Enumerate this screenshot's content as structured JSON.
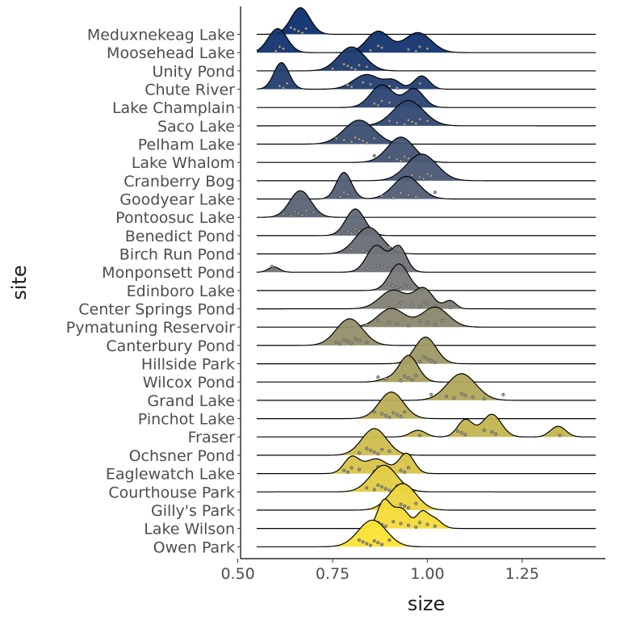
{
  "chart_data": {
    "type": "ridgeline",
    "xlabel": "size",
    "ylabel": "site",
    "xlim": [
      0.52,
      1.44
    ],
    "x_ticks": [
      0.5,
      0.75,
      1.0,
      1.25
    ],
    "x_tick_labels": [
      "0.50",
      "0.75",
      "1.00",
      "1.25"
    ],
    "fill_gradient": [
      "#0b2e6e",
      "#fde333"
    ],
    "grid": false,
    "legend": "none",
    "sites": [
      {
        "name": "Meduxnekeag Lake",
        "peaks": [
          [
            0.665,
            0.025,
            1.0
          ]
        ],
        "points": [
          0.64,
          0.65,
          0.66,
          0.67,
          0.68
        ]
      },
      {
        "name": "Moosehead Lake",
        "peaks": [
          [
            0.605,
            0.025,
            0.9
          ],
          [
            0.87,
            0.03,
            0.8
          ],
          [
            0.975,
            0.035,
            0.75
          ]
        ],
        "points": [
          0.6,
          0.61,
          0.62,
          0.85,
          0.87,
          0.88,
          0.95,
          0.97,
          0.98,
          1.0
        ]
      },
      {
        "name": "Unity Pond",
        "peaks": [
          [
            0.8,
            0.035,
            0.9
          ]
        ],
        "points": [
          0.75,
          0.78,
          0.79,
          0.8,
          0.81,
          0.82,
          0.84
        ]
      },
      {
        "name": "Chute River",
        "peaks": [
          [
            0.615,
            0.02,
            1.0
          ],
          [
            0.84,
            0.035,
            0.55
          ],
          [
            0.91,
            0.02,
            0.3
          ],
          [
            0.985,
            0.02,
            0.5
          ]
        ],
        "points": [
          0.61,
          0.62,
          0.63,
          0.79,
          0.8,
          0.83,
          0.85,
          0.9,
          0.92,
          0.98
        ]
      },
      {
        "name": "Lake Champlain",
        "peaks": [
          [
            0.88,
            0.03,
            0.85
          ],
          [
            0.965,
            0.025,
            0.7
          ]
        ],
        "points": [
          0.86,
          0.87,
          0.88,
          0.9,
          0.93,
          0.95,
          0.96,
          0.97
        ]
      },
      {
        "name": "Saco Lake",
        "peaks": [
          [
            0.95,
            0.04,
            0.95
          ]
        ],
        "points": [
          0.9,
          0.92,
          0.94,
          0.95,
          0.96,
          0.97,
          0.98,
          1.0
        ]
      },
      {
        "name": "Pelham Lake",
        "peaks": [
          [
            0.82,
            0.04,
            0.9
          ]
        ],
        "points": [
          0.76,
          0.78,
          0.8,
          0.81,
          0.82,
          0.83,
          0.84,
          0.86
        ]
      },
      {
        "name": "Lake Whalom",
        "peaks": [
          [
            0.93,
            0.035,
            0.95
          ]
        ],
        "points": [
          0.86,
          0.9,
          0.92,
          0.93,
          0.94,
          0.95
        ]
      },
      {
        "name": "Cranberry Bog",
        "peaks": [
          [
            0.985,
            0.04,
            1.0
          ]
        ],
        "points": [
          0.93,
          0.96,
          0.98,
          0.99,
          1.0,
          1.01
        ]
      },
      {
        "name": "Goodyear Lake",
        "peaks": [
          [
            0.78,
            0.02,
            1.0
          ],
          [
            0.945,
            0.035,
            0.85
          ]
        ],
        "points": [
          0.77,
          0.78,
          0.79,
          0.88,
          0.91,
          0.93,
          0.95,
          0.97,
          1.02
        ]
      },
      {
        "name": "Pontoosuc Lake",
        "peaks": [
          [
            0.665,
            0.028,
            1.0
          ]
        ],
        "points": [
          0.62,
          0.64,
          0.65,
          0.66,
          0.67,
          0.68,
          0.7
        ]
      },
      {
        "name": "Benedict Pond",
        "peaks": [
          [
            0.81,
            0.025,
            1.0
          ]
        ],
        "points": [
          0.79,
          0.8,
          0.81,
          0.82,
          0.83
        ]
      },
      {
        "name": "Birch Run Pond",
        "peaks": [
          [
            0.845,
            0.035,
            1.0
          ]
        ],
        "points": [
          0.8,
          0.83,
          0.84,
          0.85,
          0.86,
          0.88,
          0.9
        ]
      },
      {
        "name": "Monponsett Pond",
        "peaks": [
          [
            0.595,
            0.015,
            0.2
          ],
          [
            0.865,
            0.025,
            1.0
          ],
          [
            0.925,
            0.02,
            0.95
          ]
        ],
        "points": [
          0.59,
          0.84,
          0.86,
          0.87,
          0.88,
          0.9,
          0.92,
          0.93,
          0.94
        ]
      },
      {
        "name": "Edinboro Lake",
        "peaks": [
          [
            0.925,
            0.025,
            1.0
          ]
        ],
        "points": [
          0.9,
          0.91,
          0.92,
          0.93,
          0.94,
          0.95
        ]
      },
      {
        "name": "Center Springs Pond",
        "peaks": [
          [
            0.91,
            0.035,
            0.7
          ],
          [
            0.99,
            0.025,
            0.75
          ],
          [
            1.06,
            0.015,
            0.3
          ]
        ],
        "points": [
          0.9,
          0.93,
          0.96,
          0.98,
          0.99,
          1.0,
          1.02,
          1.06
        ]
      },
      {
        "name": "Pymatuning Reservoir",
        "peaks": [
          [
            0.905,
            0.035,
            0.7
          ],
          [
            1.02,
            0.035,
            0.75
          ]
        ],
        "points": [
          0.84,
          0.87,
          0.9,
          0.92,
          0.95,
          0.98,
          1.0,
          1.02,
          1.04
        ]
      },
      {
        "name": "Canterbury Pond",
        "peaks": [
          [
            0.795,
            0.035,
            1.0
          ]
        ],
        "points": [
          0.76,
          0.77,
          0.78,
          0.79,
          0.8,
          0.81,
          0.82,
          0.84
        ]
      },
      {
        "name": "Hillside Park",
        "peaks": [
          [
            0.995,
            0.028,
            1.0
          ]
        ],
        "points": [
          0.96,
          0.98,
          0.99,
          1.0,
          1.01,
          1.02
        ]
      },
      {
        "name": "Wilcox Pond",
        "peaks": [
          [
            0.95,
            0.025,
            1.0
          ],
          [
            0.89,
            0.02,
            0.1
          ]
        ],
        "points": [
          0.87,
          0.89,
          0.93,
          0.94,
          0.95,
          0.96,
          0.97
        ]
      },
      {
        "name": "Grand Lake",
        "peaks": [
          [
            1.09,
            0.038,
            1.0
          ]
        ],
        "points": [
          1.01,
          1.05,
          1.07,
          1.09,
          1.1,
          1.12,
          1.15,
          1.2
        ]
      },
      {
        "name": "Pinchot Lake",
        "peaks": [
          [
            0.905,
            0.032,
            1.0
          ]
        ],
        "points": [
          0.86,
          0.88,
          0.89,
          0.9,
          0.91,
          0.92,
          0.93,
          0.94
        ]
      },
      {
        "name": "Fraser",
        "peaks": [
          [
            0.975,
            0.02,
            0.25
          ],
          [
            1.1,
            0.02,
            0.65
          ],
          [
            1.17,
            0.025,
            0.85
          ],
          [
            1.345,
            0.02,
            0.4
          ]
        ],
        "points": [
          0.98,
          1.08,
          1.09,
          1.1,
          1.15,
          1.17,
          1.18,
          1.35
        ]
      },
      {
        "name": "Ochsner Pond",
        "peaks": [
          [
            0.86,
            0.033,
            1.0
          ]
        ],
        "points": [
          0.82,
          0.84,
          0.85,
          0.86,
          0.87,
          0.88,
          0.9
        ]
      },
      {
        "name": "Eaglewatch Lake",
        "peaks": [
          [
            0.8,
            0.02,
            0.6
          ],
          [
            0.865,
            0.03,
            0.55
          ],
          [
            0.945,
            0.02,
            0.75
          ]
        ],
        "points": [
          0.78,
          0.79,
          0.8,
          0.82,
          0.86,
          0.87,
          0.9,
          0.93,
          0.94,
          0.95
        ]
      },
      {
        "name": "Courthouse Park",
        "peaks": [
          [
            0.885,
            0.035,
            1.0
          ]
        ],
        "points": [
          0.84,
          0.86,
          0.87,
          0.88,
          0.89,
          0.9,
          0.92
        ]
      },
      {
        "name": "Gilly's Park",
        "peaks": [
          [
            0.935,
            0.035,
            1.0
          ]
        ],
        "points": [
          0.88,
          0.9,
          0.92,
          0.93,
          0.94,
          0.95,
          0.97
        ]
      },
      {
        "name": "Lake Wilson",
        "peaks": [
          [
            0.885,
            0.017,
            1.0
          ],
          [
            0.93,
            0.022,
            0.75
          ],
          [
            0.985,
            0.014,
            0.5
          ],
          [
            1.015,
            0.02,
            0.4
          ]
        ],
        "points": [
          0.87,
          0.88,
          0.89,
          0.91,
          0.93,
          0.95,
          0.97,
          0.98,
          1.0,
          1.02
        ]
      },
      {
        "name": "Owen Park",
        "peaks": [
          [
            0.855,
            0.037,
            1.0
          ]
        ],
        "points": [
          0.82,
          0.83,
          0.84,
          0.85,
          0.86,
          0.87,
          0.88,
          0.9
        ]
      }
    ]
  }
}
